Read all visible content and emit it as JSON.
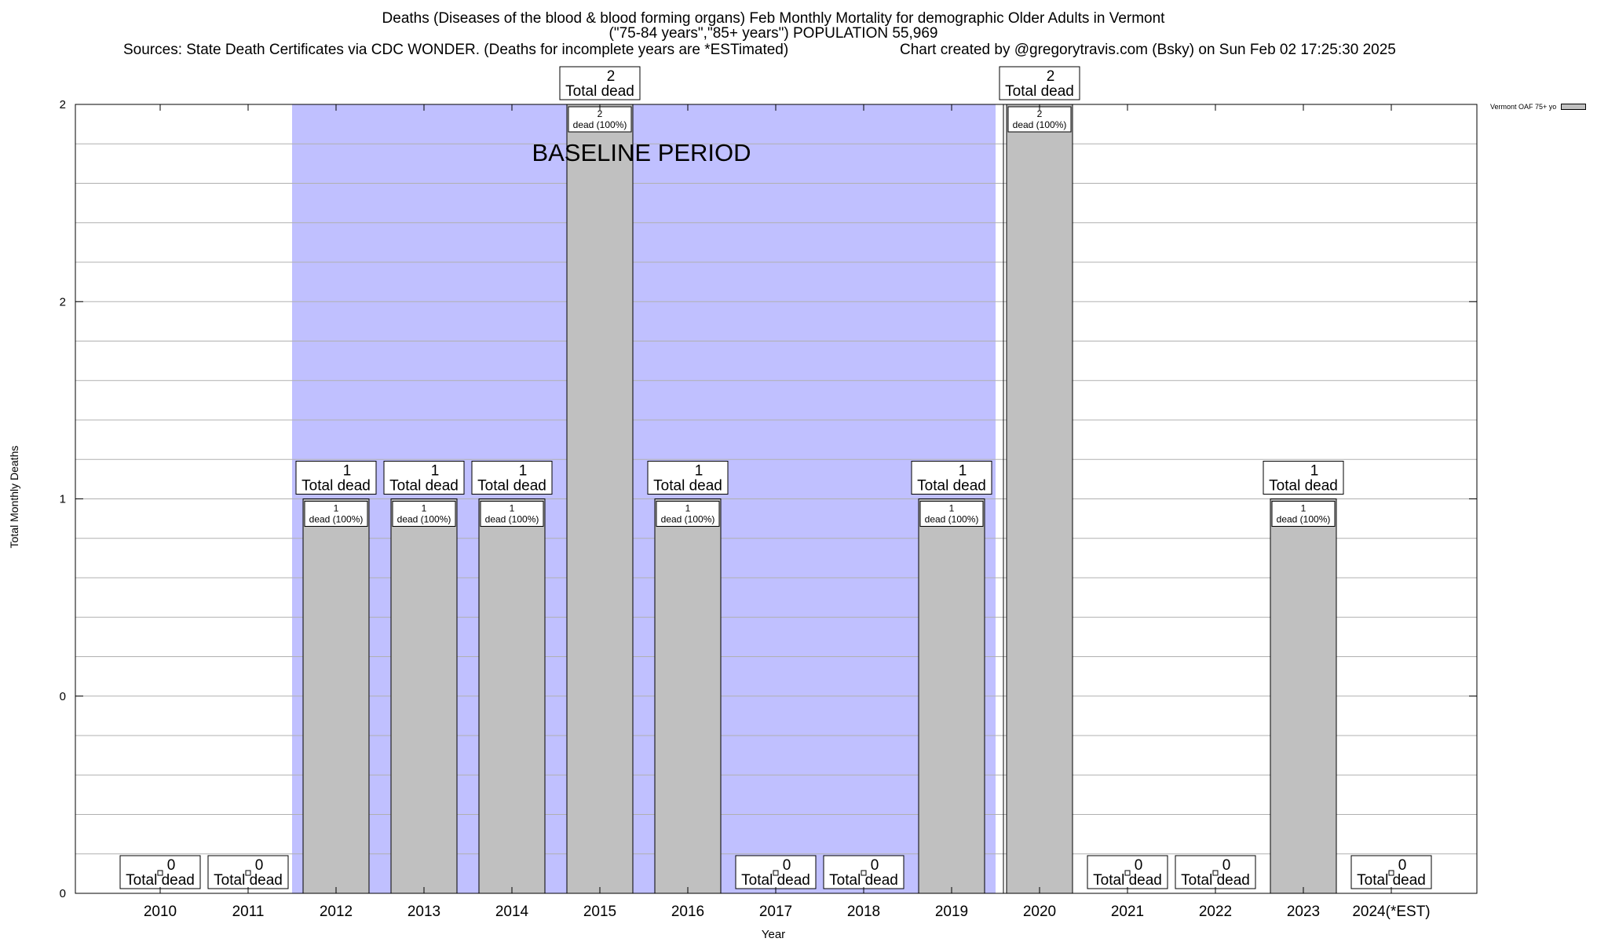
{
  "chart_data": {
    "type": "bar",
    "title_line1": "Deaths (Diseases of the blood & blood forming organs) Feb Monthly Mortality for demographic Older Adults in Vermont",
    "title_line2": "(\"75-84 years\",\"85+ years\") POPULATION 55,969",
    "sources": "Sources: State Death Certificates via CDC WONDER. (Deaths for incomplete years are *ESTimated)",
    "credit": "Chart created by @gregorytravis.com (Bsky) on Sun Feb 02 17:25:30 2025",
    "xlabel": "Year",
    "ylabel": "Total Monthly Deaths",
    "legend": "Vermont OAF 75+ yo",
    "baseline_label": "BASELINE PERIOD",
    "baseline_range": [
      "2012",
      "2019"
    ],
    "categories": [
      "2010",
      "2011",
      "2012",
      "2013",
      "2014",
      "2015",
      "2016",
      "2017",
      "2018",
      "2019",
      "2020",
      "2021",
      "2022",
      "2023",
      "2024(*EST)"
    ],
    "values": [
      0,
      0,
      1,
      1,
      1,
      2,
      1,
      0,
      0,
      1,
      2,
      0,
      0,
      1,
      0
    ],
    "total_label": "Total dead",
    "bar_label_suffix": "dead (100%)",
    "ytick_labels": [
      "0",
      "0",
      "1",
      "2",
      "2"
    ],
    "ylim": [
      0,
      2
    ],
    "grid": true,
    "colors": {
      "bar": "#c0c0c0",
      "baseline": "#c0c0ff",
      "grid": "#b0b0b0"
    }
  }
}
